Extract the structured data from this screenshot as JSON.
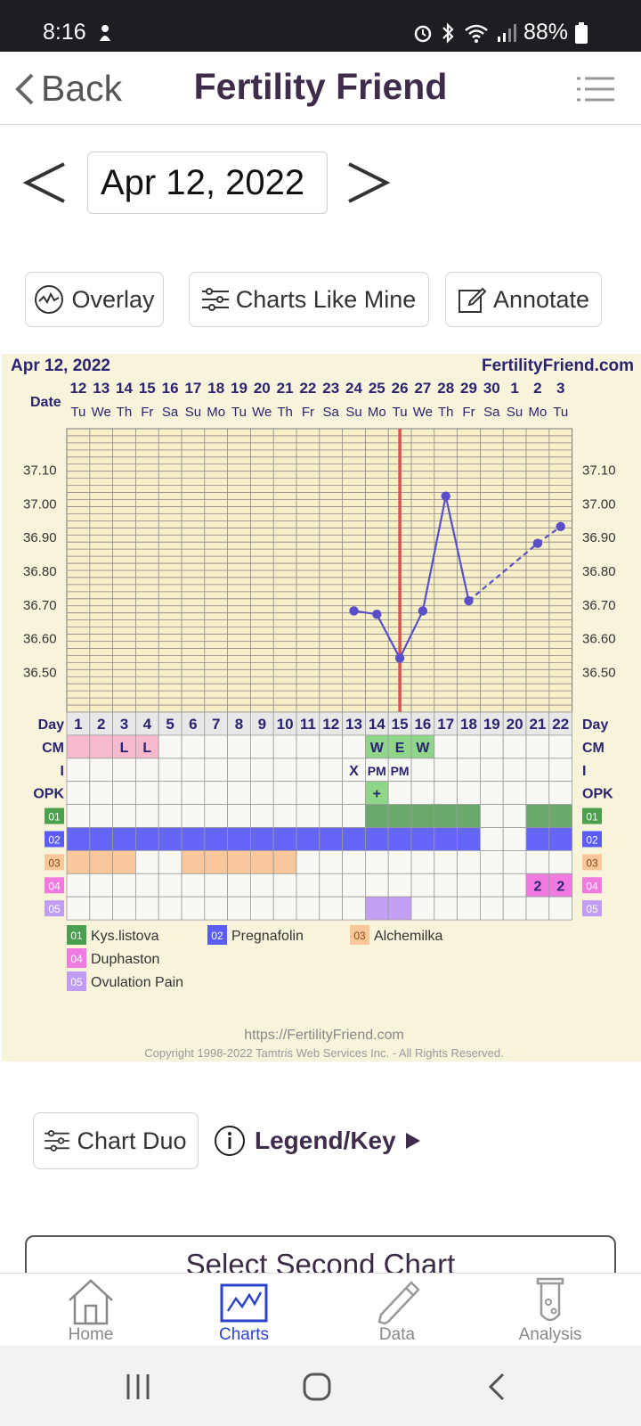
{
  "status_bar": {
    "time": "8:16",
    "battery": "88%"
  },
  "app_bar": {
    "back_label": "Back",
    "title": "Fertility Friend"
  },
  "date_nav": {
    "value": "Apr 12, 2022"
  },
  "actions": {
    "overlay": "Overlay",
    "charts_like_mine": "Charts Like Mine",
    "annotate": "Annotate"
  },
  "chart_data": {
    "type": "line",
    "header_left": "Apr 12, 2022",
    "header_right": "FertilityFriend.com",
    "date_row_label": "Date",
    "dates": [
      "12",
      "13",
      "14",
      "15",
      "16",
      "17",
      "18",
      "19",
      "20",
      "21",
      "22",
      "23",
      "24",
      "25",
      "26",
      "27",
      "28",
      "29",
      "30",
      "1",
      "2",
      "3"
    ],
    "weekdays": [
      "Tu",
      "We",
      "Th",
      "Fr",
      "Sa",
      "Su",
      "Mo",
      "Tu",
      "We",
      "Th",
      "Fr",
      "Sa",
      "Su",
      "Mo",
      "Tu",
      "We",
      "Th",
      "Fr",
      "Sa",
      "Su",
      "Mo",
      "Tu"
    ],
    "y_ticks": [
      "37.10",
      "37.00",
      "36.90",
      "36.80",
      "36.70",
      "36.60",
      "36.50"
    ],
    "y_range": [
      36.38,
      37.22
    ],
    "temps": [
      null,
      null,
      null,
      null,
      null,
      null,
      null,
      null,
      null,
      null,
      null,
      null,
      36.68,
      36.67,
      36.54,
      36.68,
      37.02,
      36.71,
      null,
      null,
      36.88,
      36.93
    ],
    "dashed_from_day": 18,
    "ovulation_day": 15,
    "day_label": "Day",
    "days": [
      "1",
      "2",
      "3",
      "4",
      "5",
      "6",
      "7",
      "8",
      "9",
      "10",
      "11",
      "12",
      "13",
      "14",
      "15",
      "16",
      "17",
      "18",
      "19",
      "20",
      "21",
      "22"
    ],
    "rows": [
      {
        "label": "CM",
        "cells": {
          "1": {
            "bg": "#f7b9cd",
            "text": ""
          },
          "2": {
            "bg": "#f7b9cd",
            "text": ""
          },
          "3": {
            "bg": "#f7b9cd",
            "text": "L"
          },
          "4": {
            "bg": "#f7b9cd",
            "text": "L"
          },
          "14": {
            "bg": "#8fd68a",
            "text": "W"
          },
          "15": {
            "bg": "#8fd68a",
            "text": "E"
          },
          "16": {
            "bg": "#8fd68a",
            "text": "W"
          }
        }
      },
      {
        "label": "I",
        "cells": {
          "13": {
            "bg": "",
            "text": "X"
          },
          "14": {
            "bg": "",
            "text": "PM"
          },
          "15": {
            "bg": "",
            "text": "PM"
          }
        }
      },
      {
        "label": "OPK",
        "cells": {
          "14": {
            "bg": "#8fd68a",
            "text": "+"
          }
        }
      },
      {
        "label": "01",
        "tag_color": "#4aa04e",
        "cells": {
          "14": {
            "bg": "#6ba96b",
            "text": ""
          },
          "15": {
            "bg": "#6ba96b",
            "text": ""
          },
          "16": {
            "bg": "#6ba96b",
            "text": ""
          },
          "17": {
            "bg": "#6ba96b",
            "text": ""
          },
          "18": {
            "bg": "#6ba96b",
            "text": ""
          },
          "21": {
            "bg": "#6ba96b",
            "text": ""
          },
          "22": {
            "bg": "#6ba96b",
            "text": ""
          }
        }
      },
      {
        "label": "02",
        "tag_color": "#5a5cf5",
        "cells": {
          "1": {
            "bg": "#6566f7",
            "text": ""
          },
          "2": {
            "bg": "#6566f7",
            "text": ""
          },
          "3": {
            "bg": "#6566f7",
            "text": ""
          },
          "4": {
            "bg": "#6566f7",
            "text": ""
          },
          "5": {
            "bg": "#6566f7",
            "text": ""
          },
          "6": {
            "bg": "#6566f7",
            "text": ""
          },
          "7": {
            "bg": "#6566f7",
            "text": ""
          },
          "8": {
            "bg": "#6566f7",
            "text": ""
          },
          "9": {
            "bg": "#6566f7",
            "text": ""
          },
          "10": {
            "bg": "#6566f7",
            "text": ""
          },
          "11": {
            "bg": "#6566f7",
            "text": ""
          },
          "12": {
            "bg": "#6566f7",
            "text": ""
          },
          "13": {
            "bg": "#6566f7",
            "text": ""
          },
          "14": {
            "bg": "#6566f7",
            "text": ""
          },
          "15": {
            "bg": "#6566f7",
            "text": ""
          },
          "16": {
            "bg": "#6566f7",
            "text": ""
          },
          "17": {
            "bg": "#6566f7",
            "text": ""
          },
          "18": {
            "bg": "#6566f7",
            "text": ""
          },
          "21": {
            "bg": "#6566f7",
            "text": ""
          },
          "22": {
            "bg": "#6566f7",
            "text": ""
          }
        }
      },
      {
        "label": "03",
        "tag_color": "#f9c79a",
        "cells": {
          "1": {
            "bg": "#fac79c",
            "text": ""
          },
          "2": {
            "bg": "#fac79c",
            "text": ""
          },
          "3": {
            "bg": "#fac79c",
            "text": ""
          },
          "6": {
            "bg": "#fac79c",
            "text": ""
          },
          "7": {
            "bg": "#fac79c",
            "text": ""
          },
          "8": {
            "bg": "#fac79c",
            "text": ""
          },
          "9": {
            "bg": "#fac79c",
            "text": ""
          },
          "10": {
            "bg": "#fac79c",
            "text": ""
          }
        }
      },
      {
        "label": "04",
        "tag_color": "#f07ae0",
        "cells": {
          "21": {
            "bg": "#f07ae0",
            "text": "2"
          },
          "22": {
            "bg": "#f07ae0",
            "text": "2"
          }
        }
      },
      {
        "label": "05",
        "tag_color": "#c09cf2",
        "cells": {
          "14": {
            "bg": "#c3a0f3",
            "text": ""
          },
          "15": {
            "bg": "#c3a0f3",
            "text": ""
          }
        }
      }
    ],
    "legend": [
      {
        "code": "01",
        "name": "Kys.listova",
        "color": "#4aa04e"
      },
      {
        "code": "02",
        "name": "Pregnafolin",
        "color": "#5a5cf5"
      },
      {
        "code": "03",
        "name": "Alchemilka",
        "color": "#f9c79a"
      },
      {
        "code": "04",
        "name": "Duphaston",
        "color": "#f07ae0"
      },
      {
        "code": "05",
        "name": "Ovulation Pain",
        "color": "#c09cf2"
      }
    ],
    "footer_url": "https://FertilityFriend.com",
    "footer_copyright": "Copyright 1998-2022 Tamtris Web Services Inc. - All Rights Reserved."
  },
  "chart_tools": {
    "chart_duo": "Chart Duo",
    "legend_key": "Legend/Key"
  },
  "select_second": "Select Second Chart",
  "bottom_nav": [
    {
      "label": "Home",
      "icon": "home-icon"
    },
    {
      "label": "Charts",
      "icon": "chart-icon",
      "active": true
    },
    {
      "label": "Data",
      "icon": "pencil-icon"
    },
    {
      "label": "Analysis",
      "icon": "test-tube-icon"
    }
  ],
  "colors": {
    "title": "#3f2b4a",
    "line": "#5a4fc9",
    "ovulation": "#d9534f",
    "accent": "#2c43c9"
  }
}
